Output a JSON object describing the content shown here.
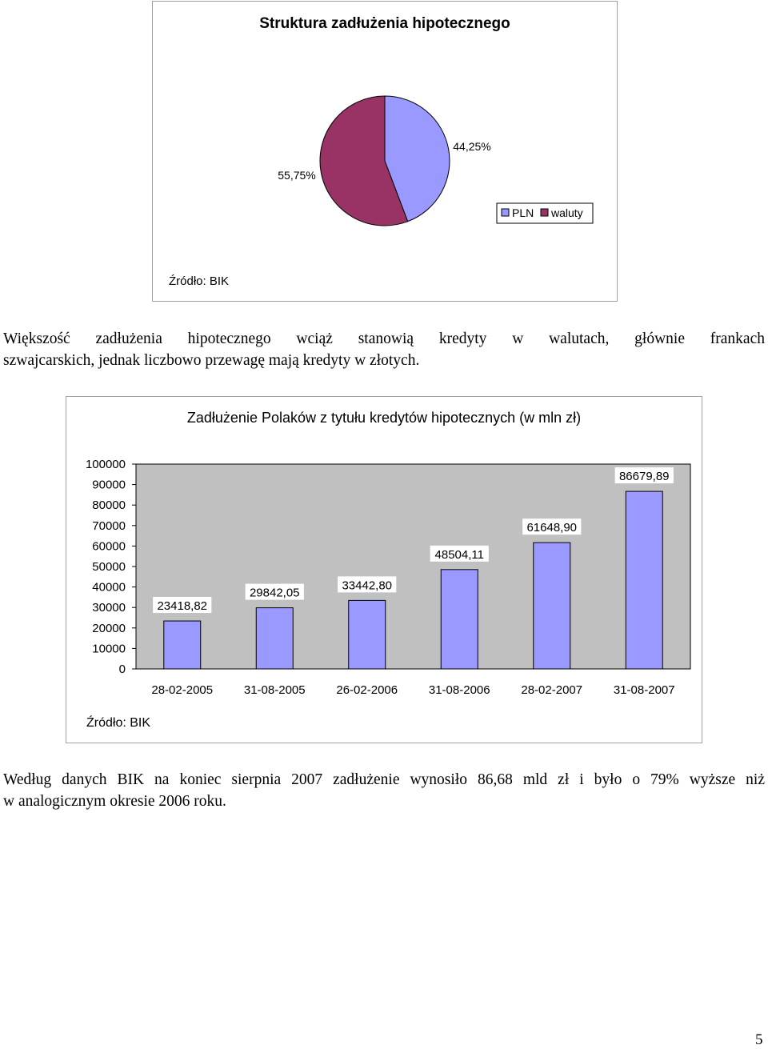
{
  "pie_chart": {
    "title": "Struktura zadłużenia hipotecznego",
    "source": "Źródło: BIK",
    "legend": [
      "PLN",
      "waluty"
    ]
  },
  "paragraph_1": {
    "line_1": "Większość zadłużenia hipotecznego wciąż stanowią kredyty w walutach, głównie frankach",
    "line_2": "szwajcarskich, jednak liczbowo przewagę mają kredyty w złotych."
  },
  "bar_chart": {
    "title": "Zadłużenie Polaków z tytułu kredytów hipotecznych (w mln zł)",
    "source": "Źródło: BIK",
    "y_tick_labels": [
      "100000",
      "90000",
      "80000",
      "70000",
      "60000",
      "50000",
      "40000",
      "30000",
      "20000",
      "10000",
      "0"
    ],
    "data_labels": [
      "23418,82",
      "29842,05",
      "33442,80",
      "48504,11",
      "61648,90",
      "86679,89"
    ]
  },
  "paragraph_2": {
    "line_1": "Według danych BIK na koniec sierpnia 2007 zadłużenie wynosiło 86,68 mld zł i było o 79% wyższe niż",
    "line_2": "w analogicznym okresie 2006 roku."
  },
  "page_number": "5",
  "colors": {
    "pln": "#9999ff",
    "waluty": "#993366",
    "bar": "#9999ff",
    "plot_bg": "#c0c0c0"
  },
  "chart_data": [
    {
      "type": "pie",
      "title": "Struktura zadłużenia hipotecznego",
      "labels": [
        "PLN",
        "waluty"
      ],
      "values": [
        44.25,
        55.75
      ],
      "value_labels": [
        "44,25%",
        "55,75%"
      ],
      "legend_position": "right"
    },
    {
      "type": "bar",
      "title": "Zadłużenie Polaków z tytułu kredytów hipotecznych (w mln zł)",
      "categories": [
        "28-02-2005",
        "31-08-2005",
        "26-02-2006",
        "31-08-2006",
        "28-02-2007",
        "31-08-2007"
      ],
      "values": [
        23418.82,
        29842.05,
        33442.8,
        48504.11,
        61648.9,
        86679.89
      ],
      "ylim": [
        0,
        100000
      ],
      "xlabel": "",
      "ylabel": "",
      "grid": false,
      "legend": false
    }
  ]
}
